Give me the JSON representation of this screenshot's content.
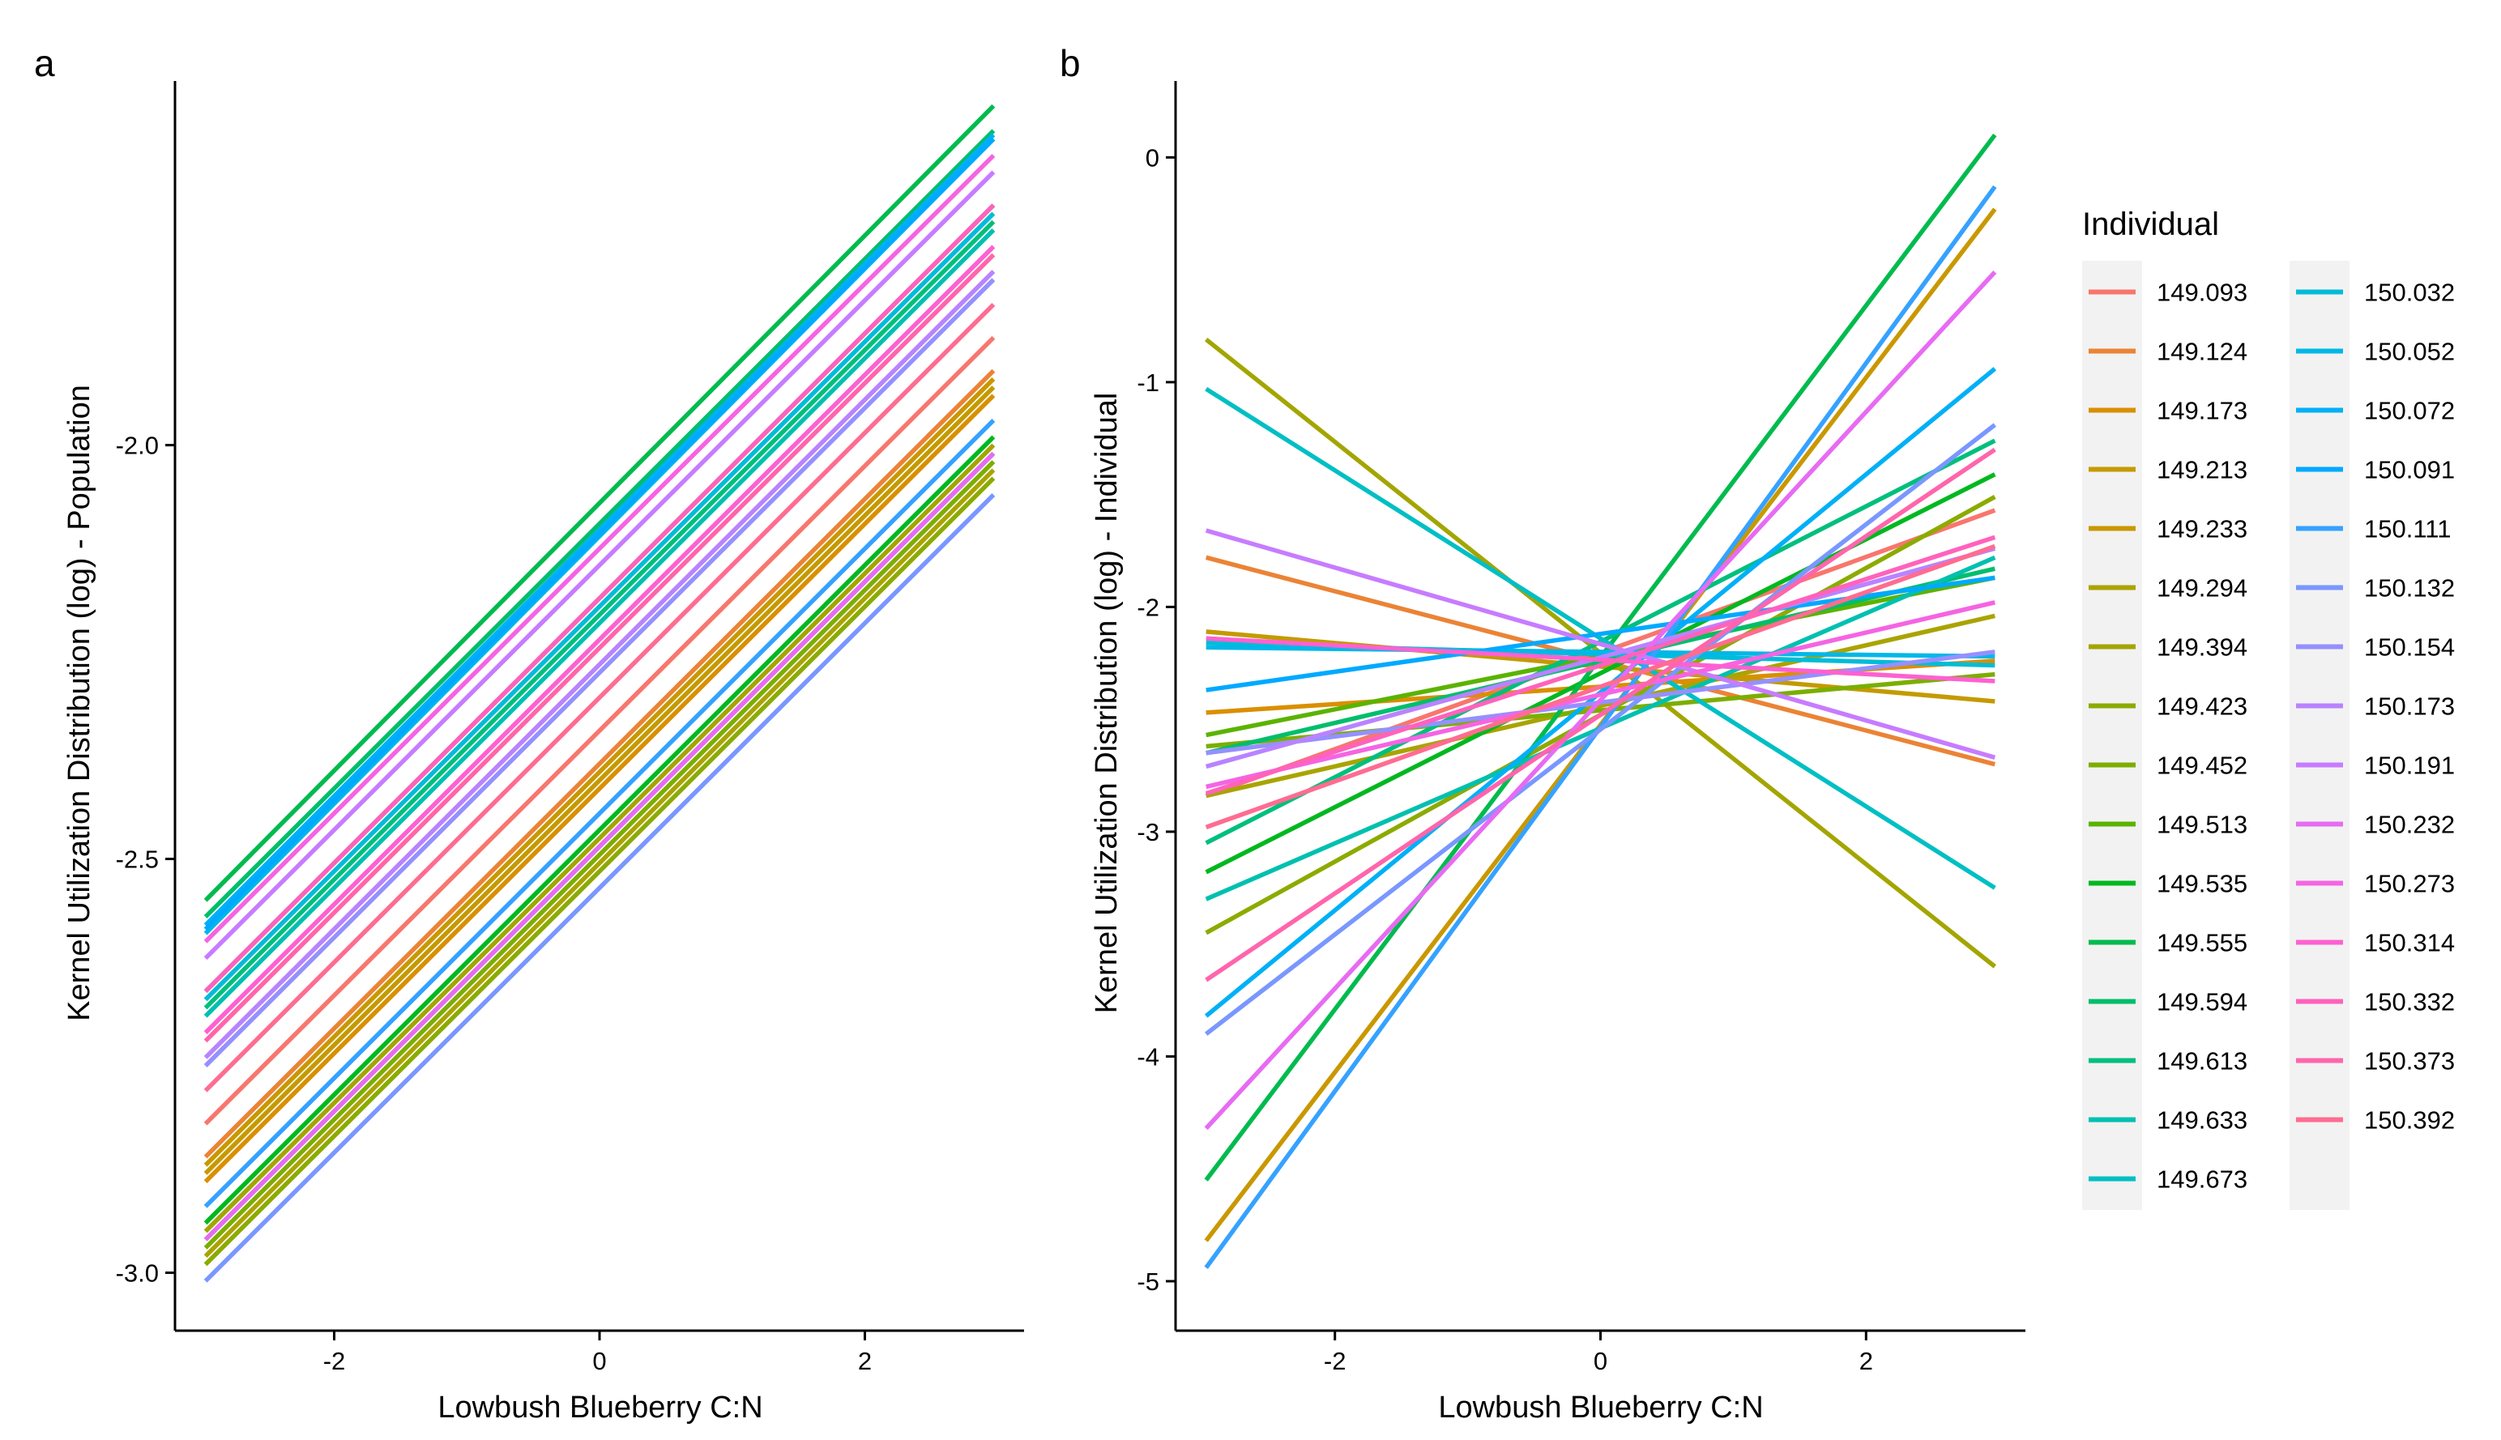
{
  "chart_data": [
    {
      "type": "line",
      "panel": "a",
      "xlabel": "Lowbush Blueberry C:N",
      "ylabel": "Kernel Utilization Distribution (log) - Population",
      "xlim": [
        -3.2,
        3.2
      ],
      "ylim": [
        -3.07,
        -1.56
      ],
      "xticks": [
        -2,
        0,
        2
      ],
      "yticks": [
        -3.0,
        -2.5,
        -2.0
      ],
      "xtick_labels": [
        "-2",
        "0",
        "2"
      ],
      "ytick_labels": [
        "-3.0",
        "-2.5",
        "-2.0"
      ],
      "grid": false,
      "series": [
        {
          "name": "149.093",
          "color": "#F8766D",
          "x": [
            -2.97,
            2.97
          ],
          "y": [
            -2.82,
            -1.87
          ]
        },
        {
          "name": "149.124",
          "color": "#EB8335",
          "x": [
            -2.97,
            2.97
          ],
          "y": [
            -2.86,
            -1.91
          ]
        },
        {
          "name": "149.173",
          "color": "#DA8F00",
          "x": [
            -2.97,
            2.97
          ],
          "y": [
            -2.89,
            -1.94
          ]
        },
        {
          "name": "149.213",
          "color": "#C49A00",
          "x": [
            -2.97,
            2.97
          ],
          "y": [
            -2.88,
            -1.93
          ]
        },
        {
          "name": "149.233",
          "color": "#C99800",
          "x": [
            -2.97,
            2.97
          ],
          "y": [
            -2.87,
            -1.92
          ]
        },
        {
          "name": "149.294",
          "color": "#A9A400",
          "x": [
            -2.97,
            2.97
          ],
          "y": [
            -2.98,
            -2.03
          ]
        },
        {
          "name": "149.394",
          "color": "#A3A500",
          "x": [
            -2.97,
            2.97
          ],
          "y": [
            -2.95,
            -2.0
          ]
        },
        {
          "name": "149.423",
          "color": "#8BAB00",
          "x": [
            -2.97,
            2.97
          ],
          "y": [
            -2.99,
            -2.04
          ]
        },
        {
          "name": "149.452",
          "color": "#7CAE00",
          "x": [
            -2.97,
            2.97
          ],
          "y": [
            -2.97,
            -2.02
          ]
        },
        {
          "name": "149.513",
          "color": "#5BB300",
          "x": [
            -2.97,
            2.97
          ],
          "y": [
            -2.96,
            -2.01
          ]
        },
        {
          "name": "149.535",
          "color": "#00B81F",
          "x": [
            -2.97,
            2.97
          ],
          "y": [
            -2.94,
            -1.99
          ]
        },
        {
          "name": "149.555",
          "color": "#00BB4E",
          "x": [
            -2.97,
            2.97
          ],
          "y": [
            -2.55,
            -1.59
          ]
        },
        {
          "name": "149.594",
          "color": "#00BE6C",
          "x": [
            -2.97,
            2.97
          ],
          "y": [
            -2.57,
            -1.62
          ]
        },
        {
          "name": "149.613",
          "color": "#00BF7D",
          "x": [
            -2.97,
            2.97
          ],
          "y": [
            -2.68,
            -1.73
          ]
        },
        {
          "name": "149.633",
          "color": "#00C0AF",
          "x": [
            -2.97,
            2.97
          ],
          "y": [
            -2.69,
            -1.74
          ]
        },
        {
          "name": "149.673",
          "color": "#00BFC4",
          "x": [
            -2.97,
            2.97
          ],
          "y": [
            -2.66,
            -1.71
          ]
        },
        {
          "name": "150.032",
          "color": "#00BCD8",
          "x": [
            -2.97,
            2.97
          ],
          "y": [
            -2.67,
            -1.72
          ]
        },
        {
          "name": "150.052",
          "color": "#00B8E7",
          "x": [
            -2.97,
            2.97
          ],
          "y": [
            -2.59,
            -1.63
          ]
        },
        {
          "name": "150.072",
          "color": "#00B0F6",
          "x": [
            -2.97,
            2.97
          ],
          "y": [
            -2.58,
            -1.625
          ]
        },
        {
          "name": "150.091",
          "color": "#00A9FF",
          "x": [
            -2.97,
            2.97
          ],
          "y": [
            -2.585,
            -1.63
          ]
        },
        {
          "name": "150.111",
          "color": "#35A2FF",
          "x": [
            -2.97,
            2.97
          ],
          "y": [
            -2.92,
            -1.97
          ]
        },
        {
          "name": "150.132",
          "color": "#7997FF",
          "x": [
            -2.97,
            2.97
          ],
          "y": [
            -3.01,
            -2.06
          ]
        },
        {
          "name": "150.154",
          "color": "#9590FF",
          "x": [
            -2.97,
            2.97
          ],
          "y": [
            -2.75,
            -1.8
          ]
        },
        {
          "name": "150.173",
          "color": "#B983FF",
          "x": [
            -2.97,
            2.97
          ],
          "y": [
            -2.74,
            -1.79
          ]
        },
        {
          "name": "150.191",
          "color": "#C77CFF",
          "x": [
            -2.97,
            2.97
          ],
          "y": [
            -2.62,
            -1.67
          ]
        },
        {
          "name": "150.232",
          "color": "#E76BF3",
          "x": [
            -2.97,
            2.97
          ],
          "y": [
            -2.96,
            -2.01
          ]
        },
        {
          "name": "150.273",
          "color": "#F564E3",
          "x": [
            -2.97,
            2.97
          ],
          "y": [
            -2.6,
            -1.65
          ]
        },
        {
          "name": "150.314",
          "color": "#FD61D1",
          "x": [
            -2.97,
            2.97
          ],
          "y": [
            -2.71,
            -1.76
          ]
        },
        {
          "name": "150.332",
          "color": "#FF62BC",
          "x": [
            -2.97,
            2.97
          ],
          "y": [
            -2.66,
            -1.71
          ]
        },
        {
          "name": "150.373",
          "color": "#FF65AC",
          "x": [
            -2.97,
            2.97
          ],
          "y": [
            -2.72,
            -1.77
          ]
        },
        {
          "name": "150.392",
          "color": "#FF6C91",
          "x": [
            -2.97,
            2.97
          ],
          "y": [
            -2.78,
            -1.83
          ]
        }
      ]
    },
    {
      "type": "line",
      "panel": "b",
      "xlabel": "Lowbush Blueberry C:N",
      "ylabel": "Kernel Utilization Distribution (log) - Individual",
      "xlim": [
        -3.2,
        3.2
      ],
      "ylim": [
        -5.22,
        0.34
      ],
      "xticks": [
        -2,
        0,
        2
      ],
      "yticks": [
        -5,
        -4,
        -3,
        -2,
        -1,
        0
      ],
      "xtick_labels": [
        "-2",
        "0",
        "2"
      ],
      "ytick_labels": [
        "-5",
        "-4",
        "-3",
        "-2",
        "-1",
        "0"
      ],
      "grid": false,
      "series": [
        {
          "name": "149.093",
          "color": "#F8766D",
          "x": [
            -2.97,
            2.97
          ],
          "y": [
            -2.84,
            -1.57
          ]
        },
        {
          "name": "149.124",
          "color": "#EB8335",
          "x": [
            -2.97,
            2.97
          ],
          "y": [
            -1.78,
            -2.7
          ]
        },
        {
          "name": "149.173",
          "color": "#DA8F00",
          "x": [
            -2.97,
            2.97
          ],
          "y": [
            -2.47,
            -2.24
          ]
        },
        {
          "name": "149.213",
          "color": "#C49A00",
          "x": [
            -2.97,
            2.97
          ],
          "y": [
            -2.11,
            -2.42
          ]
        },
        {
          "name": "149.233",
          "color": "#C99800",
          "x": [
            -2.97,
            2.97
          ],
          "y": [
            -4.82,
            -0.23
          ]
        },
        {
          "name": "149.294",
          "color": "#A9A400",
          "x": [
            -2.97,
            2.97
          ],
          "y": [
            -2.84,
            -2.04
          ]
        },
        {
          "name": "149.394",
          "color": "#A3A500",
          "x": [
            -2.97,
            2.97
          ],
          "y": [
            -0.81,
            -3.6
          ]
        },
        {
          "name": "149.423",
          "color": "#8BAB00",
          "x": [
            -2.97,
            2.97
          ],
          "y": [
            -3.45,
            -1.51
          ]
        },
        {
          "name": "149.452",
          "color": "#7CAE00",
          "x": [
            -2.97,
            2.97
          ],
          "y": [
            -2.62,
            -2.3
          ]
        },
        {
          "name": "149.513",
          "color": "#5BB300",
          "x": [
            -2.97,
            2.97
          ],
          "y": [
            -2.57,
            -1.87
          ]
        },
        {
          "name": "149.535",
          "color": "#00B81F",
          "x": [
            -2.97,
            2.97
          ],
          "y": [
            -3.18,
            -1.41
          ]
        },
        {
          "name": "149.555",
          "color": "#00BB4E",
          "x": [
            -2.97,
            2.97
          ],
          "y": [
            -4.55,
            0.1
          ]
        },
        {
          "name": "149.594",
          "color": "#00BE6C",
          "x": [
            -2.97,
            2.97
          ],
          "y": [
            -2.65,
            -1.83
          ]
        },
        {
          "name": "149.613",
          "color": "#00BF7D",
          "x": [
            -2.97,
            2.97
          ],
          "y": [
            -3.05,
            -1.26
          ]
        },
        {
          "name": "149.633",
          "color": "#00C0AF",
          "x": [
            -2.97,
            2.97
          ],
          "y": [
            -3.3,
            -1.78
          ]
        },
        {
          "name": "149.673",
          "color": "#00BFC4",
          "x": [
            -2.97,
            2.97
          ],
          "y": [
            -1.03,
            -3.25
          ]
        },
        {
          "name": "150.032",
          "color": "#00BCD8",
          "x": [
            -2.97,
            2.97
          ],
          "y": [
            -2.16,
            -2.26
          ]
        },
        {
          "name": "150.052",
          "color": "#00B8E7",
          "x": [
            -2.97,
            2.97
          ],
          "y": [
            -2.18,
            -2.22
          ]
        },
        {
          "name": "150.072",
          "color": "#00B0F6",
          "x": [
            -2.97,
            2.97
          ],
          "y": [
            -3.82,
            -0.94
          ]
        },
        {
          "name": "150.091",
          "color": "#00A9FF",
          "x": [
            -2.97,
            2.97
          ],
          "y": [
            -2.37,
            -1.87
          ]
        },
        {
          "name": "150.111",
          "color": "#35A2FF",
          "x": [
            -2.97,
            2.97
          ],
          "y": [
            -4.94,
            -0.13
          ]
        },
        {
          "name": "150.132",
          "color": "#7997FF",
          "x": [
            -2.97,
            2.97
          ],
          "y": [
            -3.9,
            -1.19
          ]
        },
        {
          "name": "150.154",
          "color": "#9590FF",
          "x": [
            -2.97,
            2.97
          ],
          "y": [
            -2.65,
            -2.2
          ]
        },
        {
          "name": "150.173",
          "color": "#B983FF",
          "x": [
            -2.97,
            2.97
          ],
          "y": [
            -2.71,
            -1.74
          ]
        },
        {
          "name": "150.191",
          "color": "#C77CFF",
          "x": [
            -2.97,
            2.97
          ],
          "y": [
            -1.66,
            -2.67
          ]
        },
        {
          "name": "150.232",
          "color": "#E76BF3",
          "x": [
            -2.97,
            2.97
          ],
          "y": [
            -4.32,
            -0.51
          ]
        },
        {
          "name": "150.273",
          "color": "#F564E3",
          "x": [
            -2.97,
            2.97
          ],
          "y": [
            -2.8,
            -1.98
          ]
        },
        {
          "name": "150.314",
          "color": "#FD61D1",
          "x": [
            -2.97,
            2.97
          ],
          "y": [
            -2.14,
            -2.33
          ]
        },
        {
          "name": "150.332",
          "color": "#FF62BC",
          "x": [
            -2.97,
            2.97
          ],
          "y": [
            -2.83,
            -1.69
          ]
        },
        {
          "name": "150.373",
          "color": "#FF65AC",
          "x": [
            -2.97,
            2.97
          ],
          "y": [
            -3.66,
            -1.3
          ]
        },
        {
          "name": "150.392",
          "color": "#FF6C91",
          "x": [
            -2.97,
            2.97
          ],
          "y": [
            -2.98,
            -1.73
          ]
        }
      ]
    }
  ],
  "legend": {
    "title": "Individual",
    "placement": "right",
    "columns": [
      [
        "149.093",
        "149.124",
        "149.173",
        "149.213",
        "149.233",
        "149.294",
        "149.394",
        "149.423",
        "149.452",
        "149.513",
        "149.535",
        "149.555",
        "149.594",
        "149.613",
        "149.633",
        "149.673"
      ],
      [
        "150.032",
        "150.052",
        "150.072",
        "150.091",
        "150.111",
        "150.132",
        "150.154",
        "150.173",
        "150.191",
        "150.232",
        "150.273",
        "150.314",
        "150.332",
        "150.373",
        "150.392"
      ]
    ]
  }
}
